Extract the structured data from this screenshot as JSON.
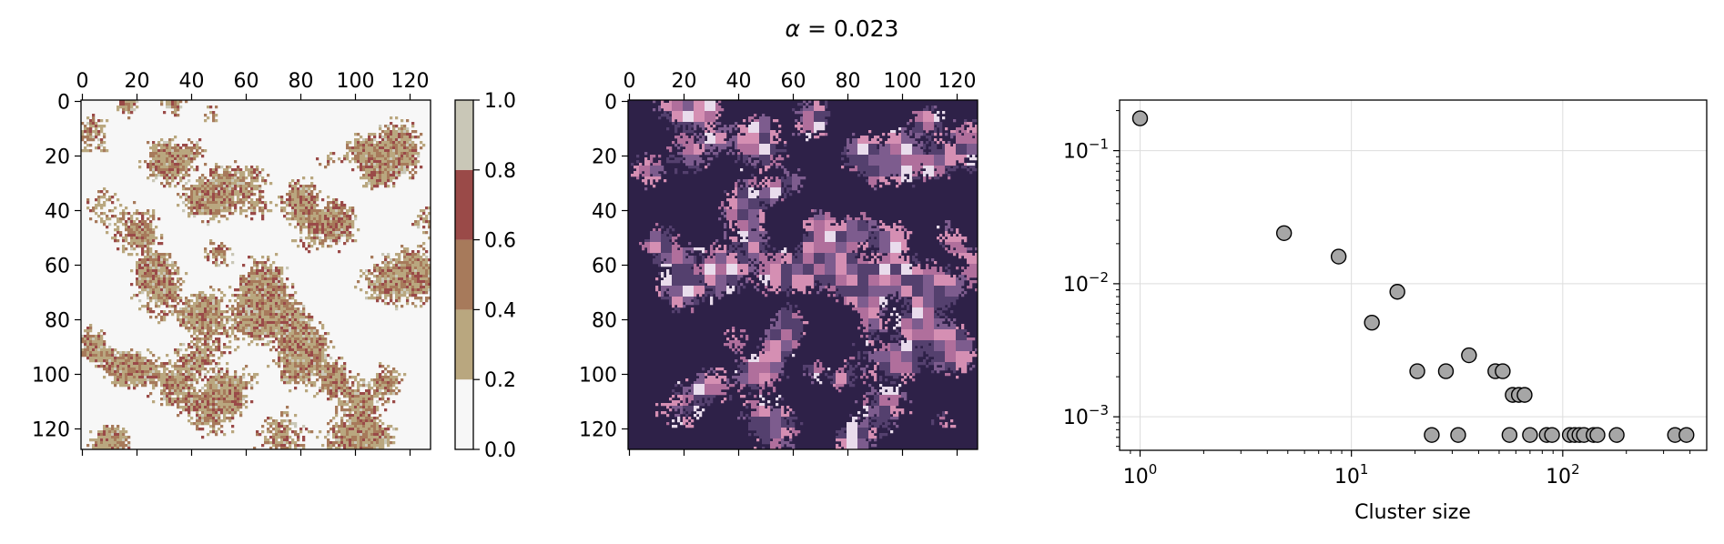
{
  "figure": {
    "title": "α = 0.023",
    "title_symbol": "α",
    "title_rest": " = 0.023"
  },
  "chart_data": [
    {
      "type": "heatmap",
      "name": "state-grid",
      "size": 128,
      "x_ticks": [
        0,
        20,
        40,
        60,
        80,
        100,
        120
      ],
      "y_ticks": [
        0,
        20,
        40,
        60,
        80,
        100,
        120
      ],
      "xlabel": "",
      "ylabel": "",
      "colorbar": {
        "ticks": [
          0.0,
          0.2,
          0.4,
          0.6,
          0.8,
          1.0
        ],
        "tick_labels": [
          "0.0",
          "0.2",
          "0.4",
          "0.6",
          "0.8",
          "1.0"
        ],
        "bands": [
          {
            "from": 0.0,
            "to": 0.2,
            "color": "#f7f7f7"
          },
          {
            "from": 0.2,
            "to": 0.4,
            "color": "#b9a77f"
          },
          {
            "from": 0.4,
            "to": 0.6,
            "color": "#a77a5b"
          },
          {
            "from": 0.6,
            "to": 0.8,
            "color": "#9a4a48"
          },
          {
            "from": 0.8,
            "to": 1.0,
            "color": "#c9c7b7"
          }
        ]
      }
    },
    {
      "type": "heatmap",
      "name": "cluster-label-grid",
      "size": 128,
      "x_ticks": [
        0,
        20,
        40,
        60,
        80,
        100,
        120
      ],
      "y_ticks": [
        0,
        20,
        40,
        60,
        80,
        100,
        120
      ],
      "xlabel": "",
      "ylabel": "",
      "palette": [
        "#2e2148",
        "#54406e",
        "#7d5c8e",
        "#b06f9c",
        "#d58fb3",
        "#e9dcec"
      ]
    },
    {
      "type": "scatter",
      "name": "cluster-size-distribution",
      "xscale": "log",
      "yscale": "log",
      "xlabel": "Cluster size",
      "ylabel": "",
      "xlim": [
        0.8,
        480
      ],
      "ylim": [
        0.00056,
        0.24
      ],
      "x_ticks": [
        1,
        10,
        100
      ],
      "x_tick_labels": [
        {
          "base": "10",
          "exp": "0"
        },
        {
          "base": "10",
          "exp": "1"
        },
        {
          "base": "10",
          "exp": "2"
        }
      ],
      "y_ticks": [
        0.001,
        0.01,
        0.1
      ],
      "y_tick_labels": [
        {
          "base": "10",
          "exp": "−3"
        },
        {
          "base": "10",
          "exp": "−2"
        },
        {
          "base": "10",
          "exp": "−1"
        }
      ],
      "grid": true,
      "marker_color": "#a6a6a6",
      "points": [
        {
          "x": 1,
          "y": 0.175
        },
        {
          "x": 4.8,
          "y": 0.024
        },
        {
          "x": 8.7,
          "y": 0.016
        },
        {
          "x": 12.5,
          "y": 0.0051
        },
        {
          "x": 16.5,
          "y": 0.0087
        },
        {
          "x": 20.5,
          "y": 0.0022
        },
        {
          "x": 24,
          "y": 0.00073
        },
        {
          "x": 28,
          "y": 0.0022
        },
        {
          "x": 32,
          "y": 0.00073
        },
        {
          "x": 36,
          "y": 0.0029
        },
        {
          "x": 48,
          "y": 0.0022
        },
        {
          "x": 52,
          "y": 0.0022
        },
        {
          "x": 56,
          "y": 0.00073
        },
        {
          "x": 58,
          "y": 0.00146
        },
        {
          "x": 62,
          "y": 0.00146
        },
        {
          "x": 66,
          "y": 0.00146
        },
        {
          "x": 70,
          "y": 0.00073
        },
        {
          "x": 84,
          "y": 0.00073
        },
        {
          "x": 89,
          "y": 0.00073
        },
        {
          "x": 108,
          "y": 0.00073
        },
        {
          "x": 114,
          "y": 0.00073
        },
        {
          "x": 120,
          "y": 0.00073
        },
        {
          "x": 126,
          "y": 0.00073
        },
        {
          "x": 140,
          "y": 0.00073
        },
        {
          "x": 146,
          "y": 0.00073
        },
        {
          "x": 180,
          "y": 0.00073
        },
        {
          "x": 340,
          "y": 0.00073
        },
        {
          "x": 385,
          "y": 0.00073
        }
      ]
    }
  ]
}
